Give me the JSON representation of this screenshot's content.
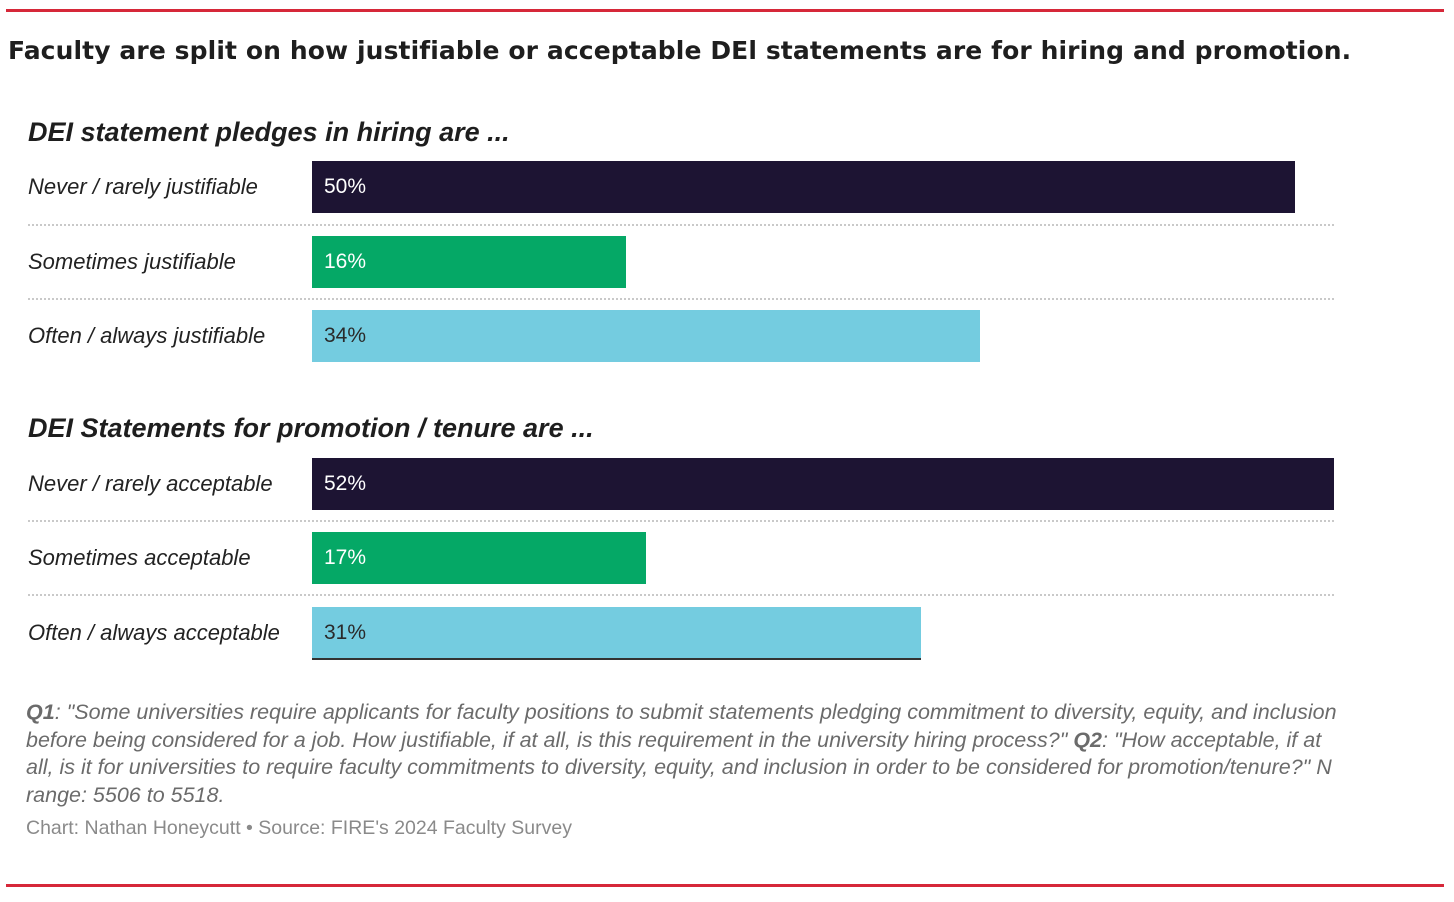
{
  "title": "Faculty are split on how justifiable or acceptable DEl statements are for hiring and promotion.",
  "colors": {
    "accent_rule": "#d62839",
    "never": "#1d1433",
    "sometimes": "#05a866",
    "often": "#74cce0"
  },
  "chart_data": [
    {
      "type": "bar",
      "orientation": "horizontal",
      "title": "DEI statement pledges in hiring are ...",
      "categories": [
        "Never / rarely justifiable",
        "Sometimes justifiable",
        "Often / always justifiable"
      ],
      "values": [
        50,
        16,
        34
      ],
      "value_labels": [
        "50%",
        "16%",
        "34%"
      ],
      "colors": [
        "#1d1433",
        "#05a866",
        "#74cce0"
      ],
      "xlim": [
        0,
        52
      ]
    },
    {
      "type": "bar",
      "orientation": "horizontal",
      "title": "DEI Statements for promotion / tenure are ...",
      "categories": [
        "Never / rarely acceptable",
        "Sometimes acceptable",
        "Often / always acceptable"
      ],
      "values": [
        52,
        17,
        31
      ],
      "value_labels": [
        "52%",
        "17%",
        "31%"
      ],
      "colors": [
        "#1d1433",
        "#05a866",
        "#74cce0"
      ],
      "xlim": [
        0,
        52
      ]
    }
  ],
  "note": {
    "q1_label": "Q1",
    "q1_text": ": \"Some universities require applicants for faculty positions to submit statements pledging commitment to diversity, equity, and inclusion before being considered for a job. How justifiable, if at all, is this requirement in the university hiring process?\" ",
    "q2_label": "Q2",
    "q2_text": ": \"How acceptable, if at all, is it for universities to require faculty commitments to diversity, equity, and inclusion in order to be considered for promotion/tenure?\" N range: 5506 to 5518."
  },
  "credit": "Chart: Nathan Honeycutt • Source: FIRE's 2024 Faculty Survey"
}
